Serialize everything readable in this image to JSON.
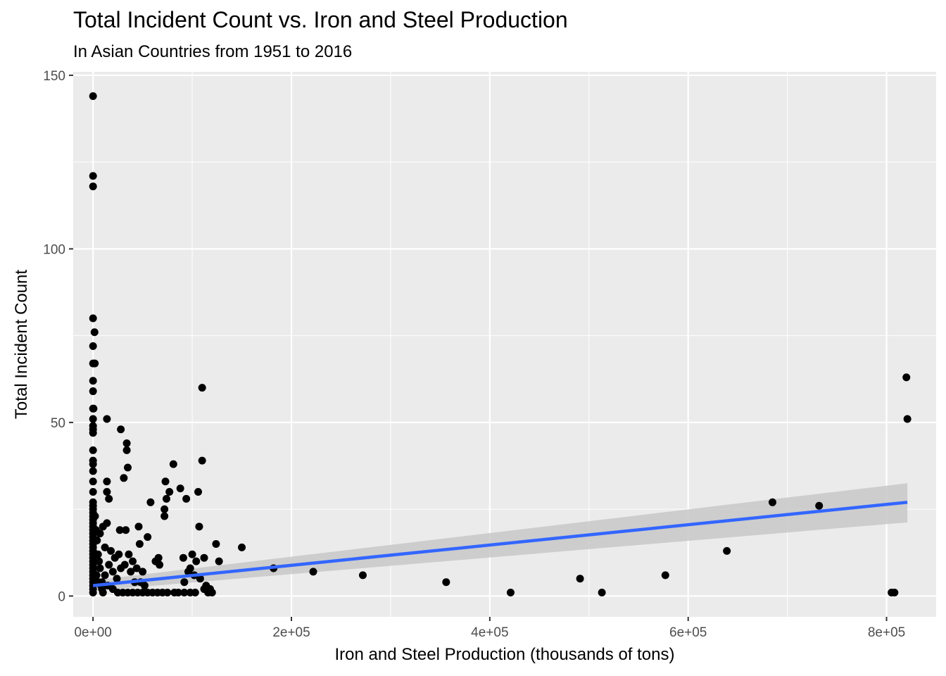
{
  "chart_data": {
    "type": "scatter",
    "title": "Total Incident Count vs. Iron and Steel Production",
    "subtitle": "In Asian Countries from 1951 to 2016",
    "xlabel": "Iron and Steel Production (thousands of tons)",
    "ylabel": "Total Incident Count",
    "xlim": [
      -20000,
      850000
    ],
    "ylim": [
      -6,
      151
    ],
    "x_ticks": [
      0,
      200000,
      400000,
      600000,
      800000
    ],
    "x_tick_labels": [
      "0e+00",
      "2e+05",
      "4e+05",
      "6e+05",
      "8e+05"
    ],
    "y_ticks": [
      0,
      50,
      100,
      150
    ],
    "y_tick_labels": [
      "0",
      "50",
      "100",
      "150"
    ],
    "grid": true,
    "background": "#ebebeb",
    "point_color": "#000000",
    "points": [
      [
        0,
        144
      ],
      [
        0,
        121
      ],
      [
        0,
        118
      ],
      [
        0,
        80
      ],
      [
        1500,
        76
      ],
      [
        0,
        72
      ],
      [
        0,
        67
      ],
      [
        1800,
        67
      ],
      [
        0,
        62
      ],
      [
        0,
        59
      ],
      [
        0,
        54
      ],
      [
        500,
        54
      ],
      [
        0,
        51
      ],
      [
        0,
        49
      ],
      [
        0,
        48
      ],
      [
        0,
        47
      ],
      [
        0,
        42
      ],
      [
        0,
        39
      ],
      [
        0,
        38
      ],
      [
        0,
        36
      ],
      [
        0,
        33
      ],
      [
        0,
        30
      ],
      [
        0,
        27
      ],
      [
        0,
        26
      ],
      [
        0,
        25
      ],
      [
        0,
        24
      ],
      [
        0,
        23
      ],
      [
        0,
        22
      ],
      [
        0,
        21
      ],
      [
        0,
        20
      ],
      [
        0,
        19
      ],
      [
        0,
        18
      ],
      [
        0,
        17
      ],
      [
        0,
        16
      ],
      [
        0,
        15
      ],
      [
        0,
        14
      ],
      [
        0,
        13
      ],
      [
        0,
        12
      ],
      [
        0,
        11
      ],
      [
        0,
        10
      ],
      [
        0,
        9
      ],
      [
        0,
        8
      ],
      [
        0,
        7
      ],
      [
        0,
        6
      ],
      [
        0,
        5
      ],
      [
        0,
        4
      ],
      [
        0,
        3
      ],
      [
        0,
        2
      ],
      [
        0,
        1
      ],
      [
        2000,
        23
      ],
      [
        3000,
        19
      ],
      [
        4000,
        16
      ],
      [
        5000,
        12
      ],
      [
        6000,
        10
      ],
      [
        7000,
        8
      ],
      [
        3500,
        6
      ],
      [
        5500,
        4
      ],
      [
        8000,
        3
      ],
      [
        9000,
        2
      ],
      [
        10000,
        1
      ],
      [
        14000,
        51
      ],
      [
        28000,
        48
      ],
      [
        34000,
        44
      ],
      [
        34000,
        42
      ],
      [
        35000,
        37
      ],
      [
        31000,
        34
      ],
      [
        14000,
        33
      ],
      [
        14000,
        30
      ],
      [
        16000,
        28
      ],
      [
        10000,
        20
      ],
      [
        14000,
        21
      ],
      [
        7000,
        18
      ],
      [
        12000,
        14
      ],
      [
        18000,
        13
      ],
      [
        22000,
        11
      ],
      [
        26000,
        12
      ],
      [
        27000,
        19
      ],
      [
        33000,
        19
      ],
      [
        16000,
        9
      ],
      [
        20000,
        7
      ],
      [
        24000,
        5
      ],
      [
        12000,
        6
      ],
      [
        9000,
        4
      ],
      [
        15000,
        3
      ],
      [
        20000,
        2
      ],
      [
        25000,
        1
      ],
      [
        30000,
        1
      ],
      [
        35000,
        1
      ],
      [
        40000,
        1
      ],
      [
        45000,
        1
      ],
      [
        50000,
        1
      ],
      [
        55000,
        1
      ],
      [
        60000,
        1
      ],
      [
        65000,
        1
      ],
      [
        70000,
        1
      ],
      [
        75000,
        1
      ],
      [
        28000,
        8
      ],
      [
        32000,
        9
      ],
      [
        36000,
        12
      ],
      [
        40000,
        10
      ],
      [
        44000,
        8
      ],
      [
        46000,
        20
      ],
      [
        47000,
        15
      ],
      [
        48000,
        4
      ],
      [
        42000,
        4
      ],
      [
        38000,
        7
      ],
      [
        50000,
        7
      ],
      [
        52000,
        3
      ],
      [
        55000,
        17
      ],
      [
        58000,
        27
      ],
      [
        63000,
        10
      ],
      [
        66000,
        11
      ],
      [
        67000,
        9
      ],
      [
        72000,
        23
      ],
      [
        72000,
        25
      ],
      [
        74000,
        28
      ],
      [
        73000,
        33
      ],
      [
        77000,
        30
      ],
      [
        81000,
        38
      ],
      [
        88000,
        31
      ],
      [
        94000,
        28
      ],
      [
        91000,
        11
      ],
      [
        92000,
        4
      ],
      [
        96000,
        7
      ],
      [
        98000,
        8
      ],
      [
        100000,
        12
      ],
      [
        102000,
        6
      ],
      [
        104000,
        10
      ],
      [
        106000,
        30
      ],
      [
        107000,
        20
      ],
      [
        110000,
        60
      ],
      [
        110000,
        39
      ],
      [
        112000,
        11
      ],
      [
        108000,
        5
      ],
      [
        112000,
        2
      ],
      [
        114000,
        3
      ],
      [
        116000,
        1
      ],
      [
        118000,
        2
      ],
      [
        120000,
        1
      ],
      [
        98000,
        1
      ],
      [
        103000,
        1
      ],
      [
        82000,
        1
      ],
      [
        86000,
        1
      ],
      [
        92000,
        1
      ],
      [
        124000,
        15
      ],
      [
        127000,
        10
      ],
      [
        150000,
        14
      ],
      [
        182000,
        8
      ],
      [
        222000,
        7
      ],
      [
        272000,
        6
      ],
      [
        356000,
        4
      ],
      [
        421000,
        1
      ],
      [
        491000,
        5
      ],
      [
        513000,
        1
      ],
      [
        577000,
        6
      ],
      [
        639000,
        13
      ],
      [
        685000,
        27
      ],
      [
        732000,
        26
      ],
      [
        805000,
        1
      ],
      [
        808000,
        1
      ],
      [
        820000,
        63
      ],
      [
        821000,
        51
      ]
    ],
    "trend_line": {
      "x": [
        0,
        821000
      ],
      "y": [
        3,
        27
      ],
      "color": "#3366ff"
    },
    "confidence_band": {
      "x": [
        0,
        821000
      ],
      "lower": [
        1.5,
        21.2
      ],
      "upper": [
        4.5,
        32.5
      ],
      "color": "#c8c8c8"
    }
  }
}
